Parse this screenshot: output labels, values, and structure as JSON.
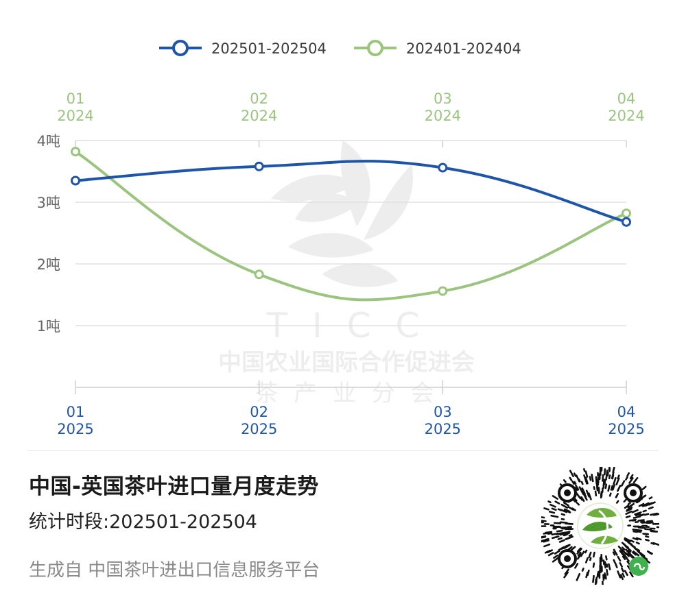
{
  "chart_data": {
    "type": "line",
    "unit": "吨",
    "ylim": [
      0,
      4
    ],
    "yticks": [
      1,
      2,
      3,
      4
    ],
    "grid": true,
    "legend_position": "top",
    "x_bottom": [
      {
        "month": "01",
        "year": "2025"
      },
      {
        "month": "02",
        "year": "2025"
      },
      {
        "month": "03",
        "year": "2025"
      },
      {
        "month": "04",
        "year": "2025"
      }
    ],
    "x_top": [
      {
        "month": "01",
        "year": "2024"
      },
      {
        "month": "02",
        "year": "2024"
      },
      {
        "month": "03",
        "year": "2024"
      },
      {
        "month": "04",
        "year": "2024"
      }
    ],
    "series": [
      {
        "name": "202501-202504",
        "color": "#1f55a8",
        "values": [
          3.35,
          3.58,
          3.56,
          2.68
        ]
      },
      {
        "name": "202401-202404",
        "color": "#9bc47e",
        "values": [
          3.82,
          1.83,
          1.56,
          2.82
        ]
      }
    ]
  },
  "watermark": {
    "letters": "T I C C",
    "org": "中国农业国际合作促进会",
    "branch": "茶 产 业 分 会"
  },
  "footer": {
    "title": "中国-英国茶叶进口量月度走势",
    "period": "统计时段:202501-202504",
    "source": "生成自 中国茶叶进出口信息服务平台"
  },
  "qr": {
    "icon": "mini-program-qr-code-icon"
  }
}
